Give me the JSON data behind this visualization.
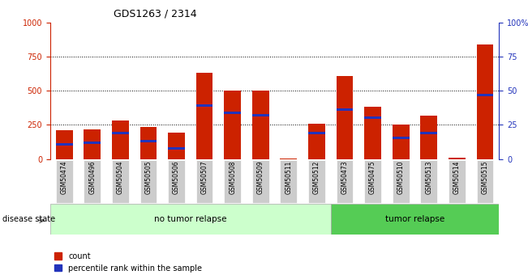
{
  "title": "GDS1263 / 2314",
  "samples": [
    "GSM50474",
    "GSM50496",
    "GSM50504",
    "GSM50505",
    "GSM50506",
    "GSM50507",
    "GSM50508",
    "GSM50509",
    "GSM50511",
    "GSM50512",
    "GSM50473",
    "GSM50475",
    "GSM50510",
    "GSM50513",
    "GSM50514",
    "GSM50515"
  ],
  "count_values": [
    210,
    215,
    280,
    235,
    195,
    630,
    500,
    500,
    5,
    260,
    610,
    385,
    250,
    320,
    10,
    840
  ],
  "percentile_values": [
    110,
    120,
    190,
    130,
    75,
    390,
    340,
    320,
    0,
    190,
    360,
    300,
    155,
    190,
    0,
    470
  ],
  "no_tumor_count": 10,
  "tumor_count": 6,
  "ylim_left": [
    0,
    1000
  ],
  "yticks_left": [
    0,
    250,
    500,
    750,
    1000
  ],
  "yticks_right": [
    0,
    25,
    50,
    75,
    100
  ],
  "yticklabels_right": [
    "0",
    "25",
    "50",
    "75",
    "100%"
  ],
  "yticklabels_left": [
    "0",
    "250",
    "500",
    "750",
    "1000"
  ],
  "bar_color": "#cc2200",
  "percentile_color": "#2233bb",
  "no_tumor_bg": "#ccffcc",
  "tumor_bg": "#55cc55",
  "label_bg": "#cccccc",
  "bar_width": 0.6,
  "legend_count_label": "count",
  "legend_percentile_label": "percentile rank within the sample",
  "disease_state_label": "disease state",
  "no_tumor_label": "no tumor relapse",
  "tumor_label": "tumor relapse"
}
